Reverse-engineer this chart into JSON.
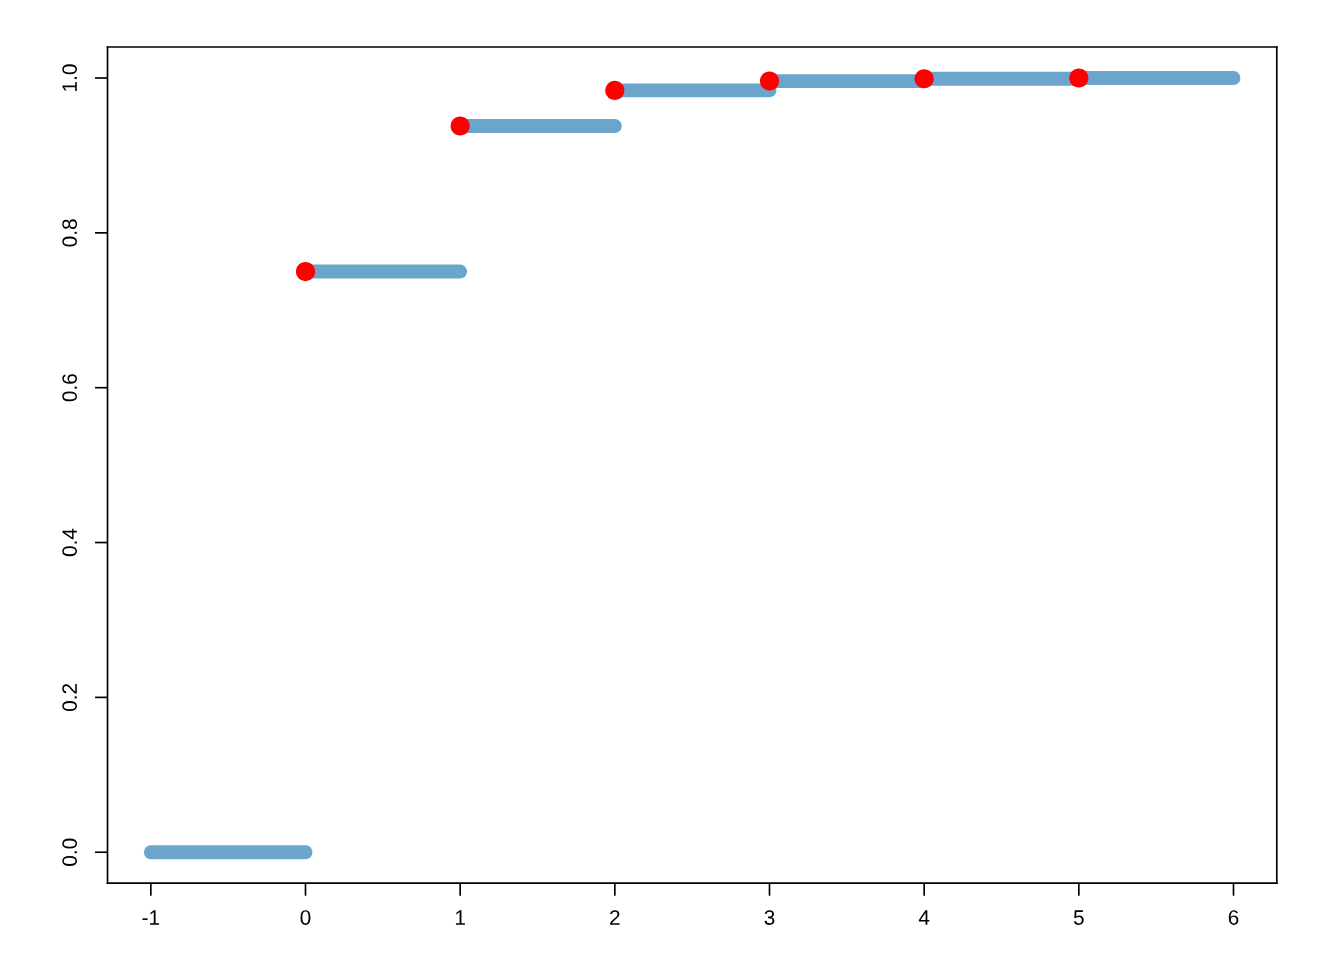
{
  "chart_data": {
    "type": "line",
    "series": [
      {
        "color": "#6ba5cc",
        "x": [
          -1,
          0
        ],
        "values": [
          0,
          0
        ]
      },
      {
        "color": "#6ba5cc",
        "x": [
          0,
          1
        ],
        "values": [
          0.75,
          0.75
        ]
      },
      {
        "color": "#6ba5cc",
        "x": [
          1,
          2
        ],
        "values": [
          0.938,
          0.938
        ]
      },
      {
        "color": "#6ba5cc",
        "x": [
          2,
          3
        ],
        "values": [
          0.984,
          0.984
        ]
      },
      {
        "color": "#6ba5cc",
        "x": [
          3,
          4
        ],
        "values": [
          0.996,
          0.996
        ]
      },
      {
        "color": "#6ba5cc",
        "x": [
          4,
          5
        ],
        "values": [
          0.999,
          0.999
        ]
      },
      {
        "color": "#6ba5cc",
        "x": [
          5,
          6
        ],
        "values": [
          1.0,
          1.0
        ]
      },
      {
        "type": "scatter",
        "color": "#ff0000",
        "marker": "circle",
        "x": [
          0,
          1,
          2,
          3,
          4,
          5
        ],
        "values": [
          0.75,
          0.938,
          0.984,
          0.996,
          0.999,
          1.0
        ]
      }
    ],
    "xlim": [
      -1.28,
      6.28
    ],
    "ylim": [
      -0.04,
      1.04
    ],
    "xticks": [
      -1,
      0,
      1,
      2,
      3,
      4,
      5,
      6
    ],
    "yticks": [
      {
        "value": 0,
        "label": "0.0"
      },
      {
        "value": 0.2,
        "label": "0.2"
      },
      {
        "value": 0.4,
        "label": "0.4"
      },
      {
        "value": 0.6,
        "label": "0.6"
      },
      {
        "value": 0.8,
        "label": "0.8"
      },
      {
        "value": 1.0,
        "label": "1.0"
      }
    ],
    "grid": false,
    "legend": false
  }
}
